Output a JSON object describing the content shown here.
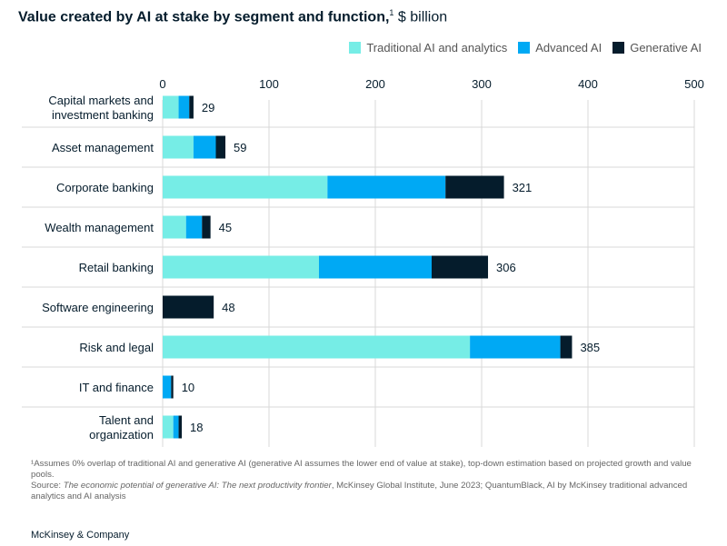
{
  "title": {
    "main": "Value created by AI at stake by segment and function,",
    "footnote_mark": "1",
    "unit": "$ billion"
  },
  "chart_data": {
    "type": "bar",
    "orientation": "horizontal",
    "stacked": true,
    "categories": [
      "Capital markets and investment banking",
      "Asset management",
      "Corporate banking",
      "Wealth management",
      "Retail banking",
      "Software engineering",
      "Risk and legal",
      "IT and finance",
      "Talent and organization"
    ],
    "category_lines": [
      [
        "Capital markets and",
        "investment banking"
      ],
      [
        "Asset management"
      ],
      [
        "Corporate banking"
      ],
      [
        "Wealth management"
      ],
      [
        "Retail banking"
      ],
      [
        "Software engineering"
      ],
      [
        "Risk and legal"
      ],
      [
        "IT and finance"
      ],
      [
        "Talent and",
        "organization"
      ]
    ],
    "series": [
      {
        "name": "Traditional AI and analytics",
        "color": "#76ede6",
        "values": [
          15,
          29,
          155,
          22,
          147,
          0,
          289,
          0,
          10
        ]
      },
      {
        "name": "Advanced AI",
        "color": "#00a9f4",
        "values": [
          10,
          21,
          111,
          15,
          106,
          0,
          85,
          8,
          5
        ]
      },
      {
        "name": "Generative  AI",
        "color": "#051c2c",
        "values": [
          4,
          9,
          55,
          8,
          53,
          48,
          11,
          2,
          3
        ]
      }
    ],
    "totals": [
      29,
      59,
      321,
      45,
      306,
      48,
      385,
      10,
      18
    ],
    "xlim": [
      0,
      500
    ],
    "xticks": [
      0,
      100,
      200,
      300,
      400,
      500
    ],
    "grid": true,
    "legend_position": "top-right",
    "xlabel": "",
    "ylabel": ""
  },
  "footnote": {
    "note": "¹Assumes 0% overlap of traditional AI and generative AI (generative AI assumes the lower end of value at stake), top-down estimation based on projected growth and value pools.",
    "source_prefix": "Source: ",
    "source_title": "The economic potential of generative AI: The next productivity frontier",
    "source_rest": ", McKinsey Global Institute, June 2023; QuantumBlack, AI by McKinsey traditional advanced analytics and AI analysis"
  },
  "brand": "McKinsey & Company"
}
